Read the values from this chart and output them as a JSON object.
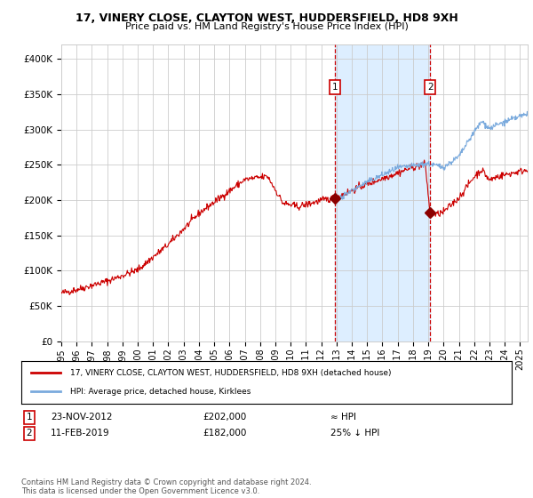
{
  "title": "17, VINERY CLOSE, CLAYTON WEST, HUDDERSFIELD, HD8 9XH",
  "subtitle": "Price paid vs. HM Land Registry's House Price Index (HPI)",
  "legend_line1": "17, VINERY CLOSE, CLAYTON WEST, HUDDERSFIELD, HD8 9XH (detached house)",
  "legend_line2": "HPI: Average price, detached house, Kirklees",
  "annotation1_date": "23-NOV-2012",
  "annotation1_price": "£202,000",
  "annotation1_hpi": "≈ HPI",
  "annotation2_date": "11-FEB-2019",
  "annotation2_price": "£182,000",
  "annotation2_hpi": "25% ↓ HPI",
  "footnote": "Contains HM Land Registry data © Crown copyright and database right 2024.\nThis data is licensed under the Open Government Licence v3.0.",
  "hpi_color": "#7aaadd",
  "sale_color": "#cc0000",
  "marker_color": "#8b0000",
  "annotation_box_color": "#cc0000",
  "shaded_region_color": "#ddeeff",
  "dashed_line_color": "#cc0000",
  "background_color": "#ffffff",
  "grid_color": "#cccccc",
  "ylim": [
    0,
    420000
  ],
  "sale1_t": 2012.9,
  "sale1_value": 202000,
  "sale2_t": 2019.12,
  "sale2_value": 182000,
  "xmin": 1995,
  "xmax": 2025.5
}
